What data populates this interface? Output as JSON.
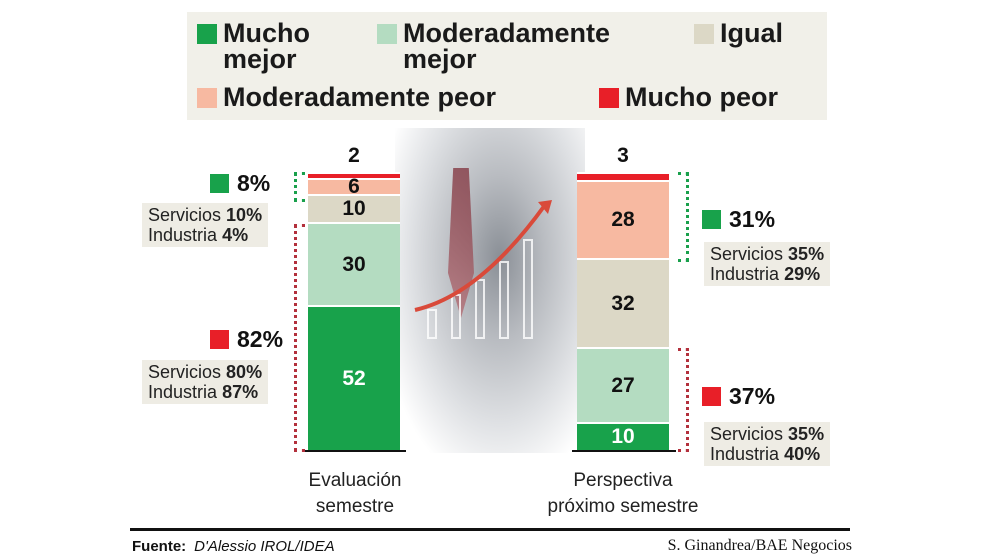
{
  "legend": [
    {
      "label": "Mucho mejor",
      "color": "#18a24b"
    },
    {
      "label": "Moderadamente mejor",
      "color": "#b4dcc1"
    },
    {
      "label": "Igual",
      "color": "#dcd8c6"
    },
    {
      "label": "Moderadamente peor",
      "color": "#f7b9a1"
    },
    {
      "label": "Mucho peor",
      "color": "#e81f28"
    }
  ],
  "chart_data": {
    "type": "bar",
    "stacked": true,
    "unit": "%",
    "categories": [
      "Evaluación semestre",
      "Perspectiva próximo semestre"
    ],
    "series": [
      {
        "name": "Mucho peor",
        "values": [
          52,
          10
        ]
      },
      {
        "name": "Moderadamente peor",
        "values": [
          30,
          27
        ]
      },
      {
        "name": "Igual",
        "values": [
          10,
          32
        ]
      },
      {
        "name": "Moderadamente mejor",
        "values": [
          6,
          28
        ]
      },
      {
        "name": "Mucho mejor",
        "values": [
          2,
          3
        ]
      }
    ],
    "annotations": [
      {
        "category": "Evaluación semestre",
        "group": "mejor",
        "total": "8%",
        "servicios": "10%",
        "industria": "4%"
      },
      {
        "category": "Evaluación semestre",
        "group": "peor",
        "total": "82%",
        "servicios": "80%",
        "industria": "87%"
      },
      {
        "category": "Perspectiva próximo semestre",
        "group": "mejor",
        "total": "31%",
        "servicios": "35%",
        "industria": "29%"
      },
      {
        "category": "Perspectiva próximo semestre",
        "group": "peor",
        "total": "37%",
        "servicios": "35%",
        "industria": "40%"
      }
    ],
    "cat_lines": [
      [
        "Evaluación",
        "semestre"
      ],
      [
        "Perspectiva",
        "próximo semestre"
      ]
    ]
  },
  "labels": {
    "servicios": "Servicios",
    "industria": "Industria"
  },
  "footer": {
    "source_label": "Fuente:",
    "source": "D'Alessio IROL/IDEA",
    "credit": "S. Ginandrea/BAE Negocios"
  }
}
